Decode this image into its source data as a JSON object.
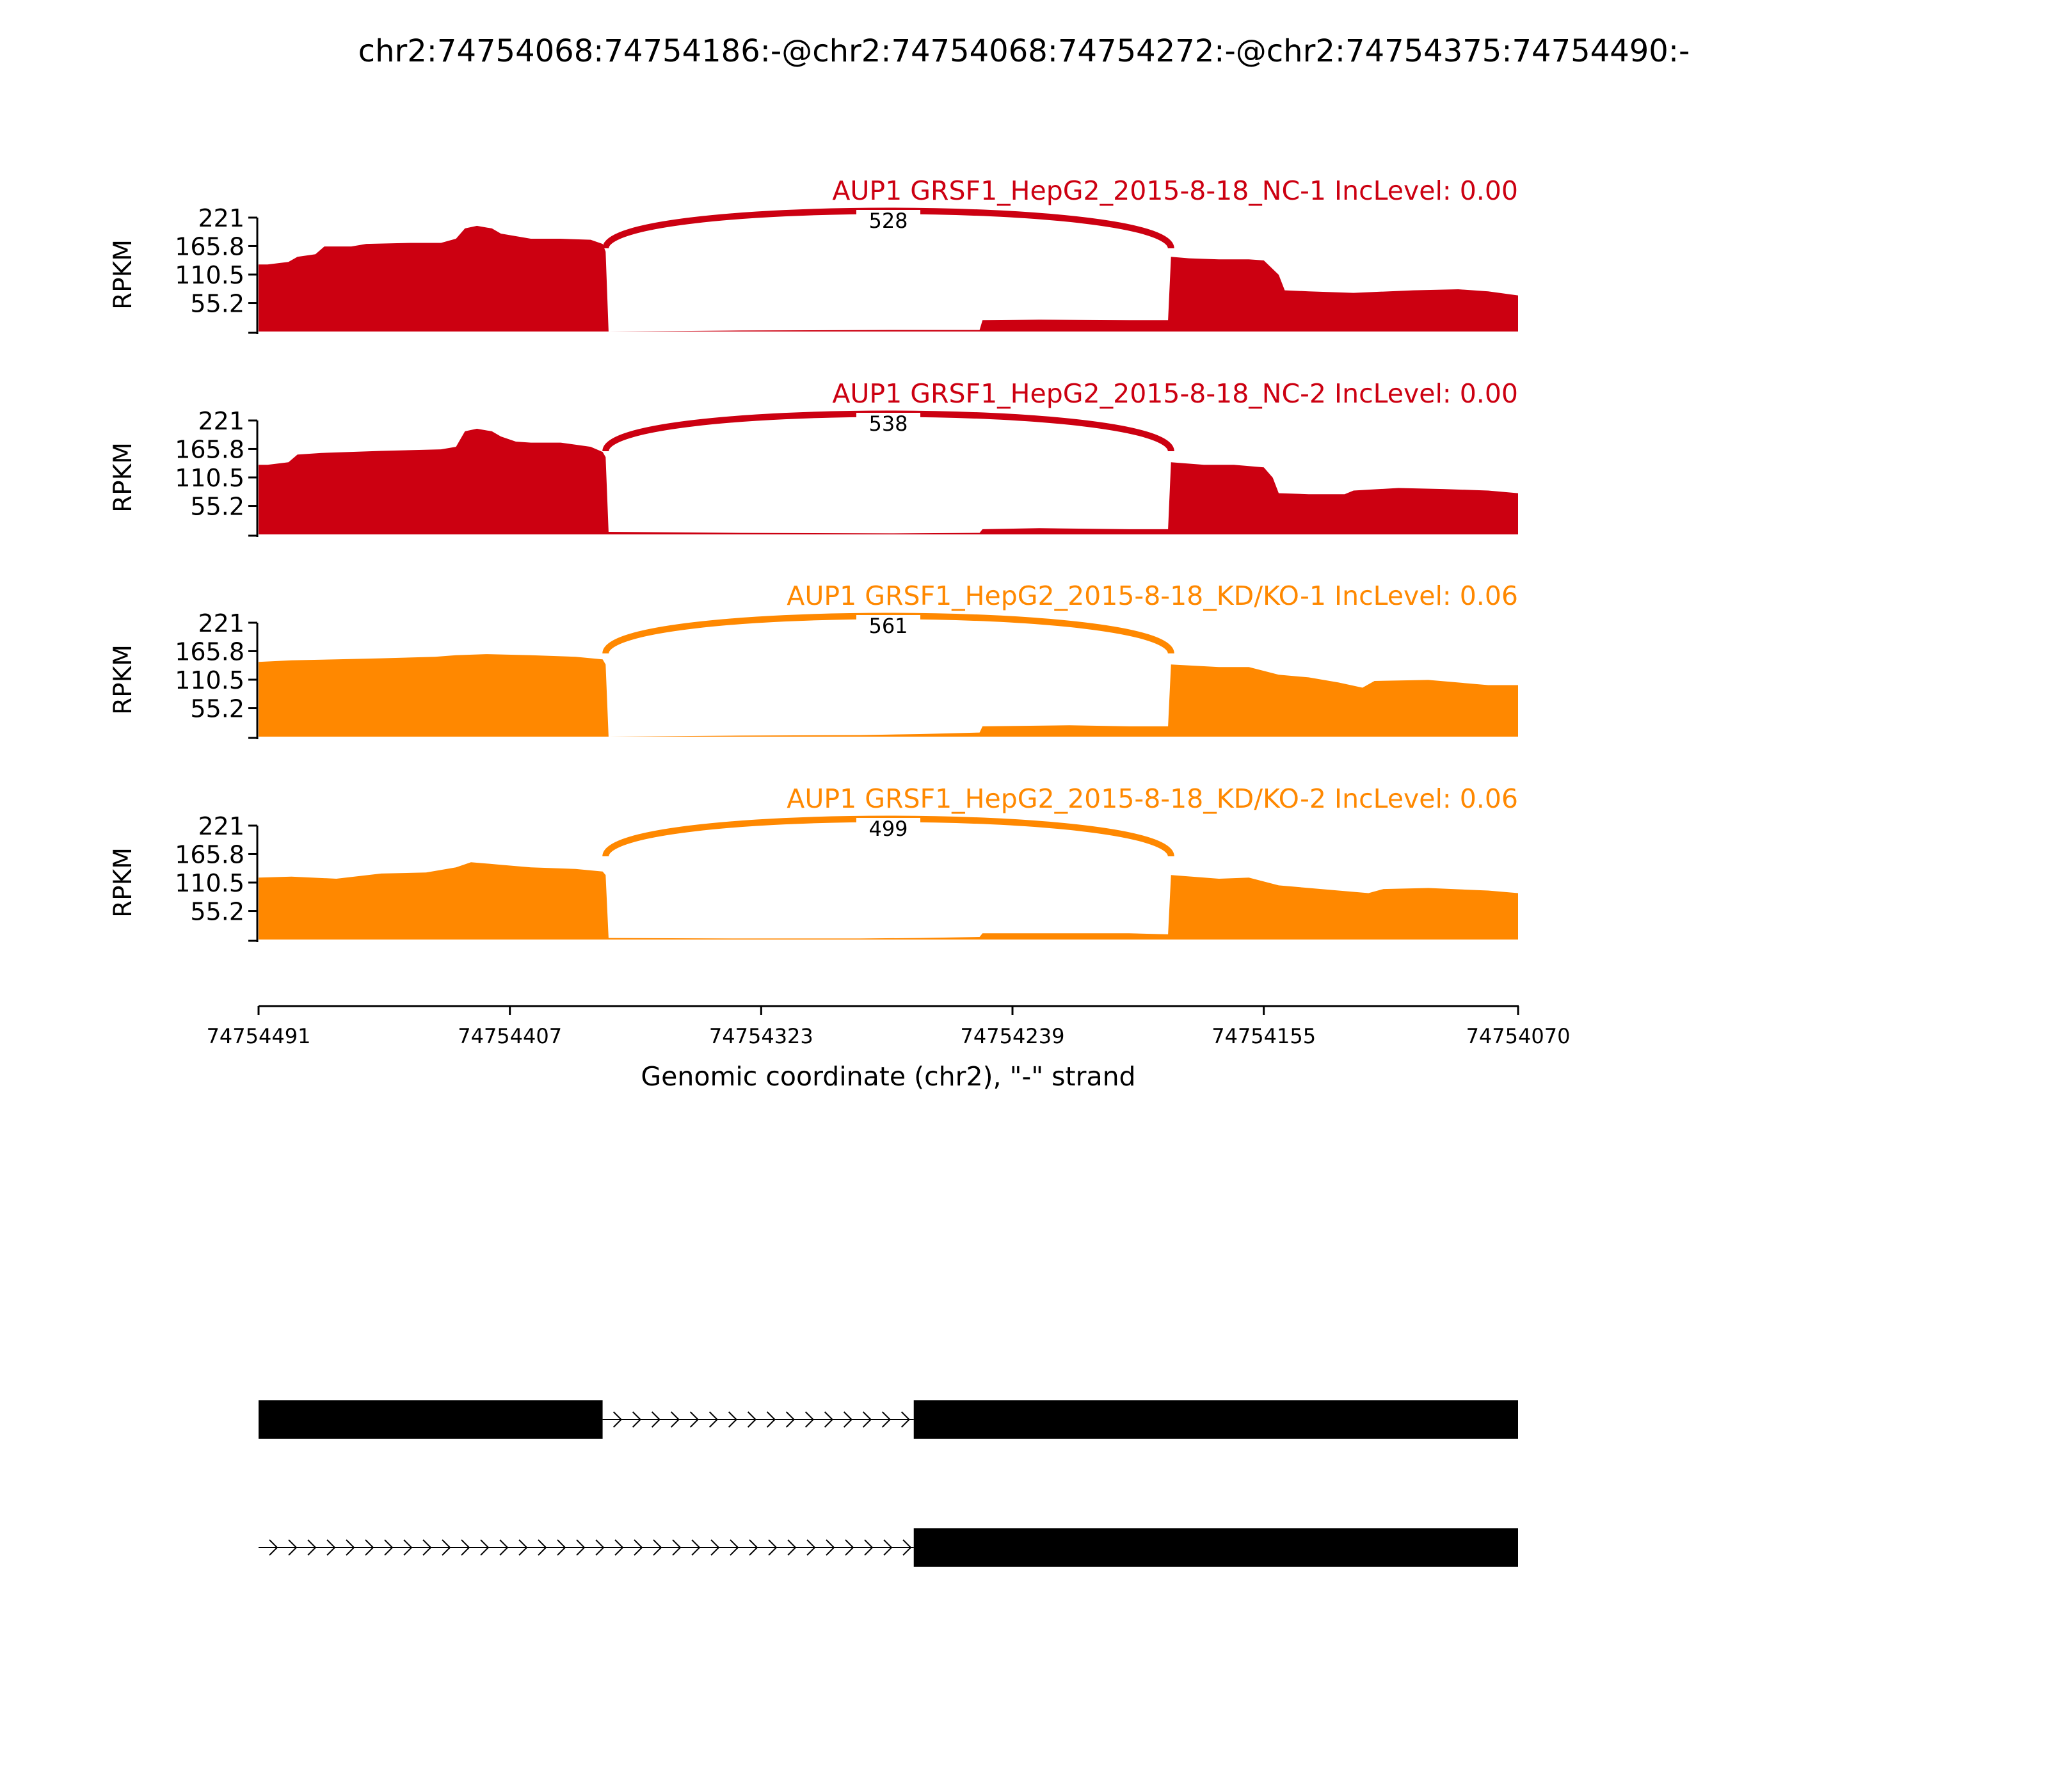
{
  "chart_data": {
    "type": "area",
    "title": "chr2:74754068:74754186:-@chr2:74754068:74754272:-@chr2:74754375:74754490:-",
    "xlabel": "Genomic coordinate (chr2), \"-\" strand",
    "ylabel": "RPKM",
    "xlim": [
      74754491,
      74754070
    ],
    "x_ticks": [
      "74754491",
      "74754407",
      "74754323",
      "74754239",
      "74754155",
      "74754070"
    ],
    "ylim": [
      0,
      221
    ],
    "y_ticks": [
      "221",
      "165.8",
      "110.5",
      "55.2"
    ],
    "grid": false,
    "colors": {
      "NC": "#cc0011",
      "KD": "#ff8800",
      "gene": "#000000"
    },
    "tracks": [
      {
        "name": "AUP1 GRSF1_HepG2_2015-8-18_NC-1 IncLevel: 0.00",
        "group": "NC",
        "junction": {
          "from": 74754375,
          "to": 74754186,
          "count": "528"
        },
        "coverage": [
          [
            74754491,
            130
          ],
          [
            74754488,
            130
          ],
          [
            74754481,
            135
          ],
          [
            74754478,
            145
          ],
          [
            74754472,
            150
          ],
          [
            74754469,
            165
          ],
          [
            74754460,
            165
          ],
          [
            74754455,
            170
          ],
          [
            74754440,
            172
          ],
          [
            74754430,
            172
          ],
          [
            74754425,
            180
          ],
          [
            74754422,
            200
          ],
          [
            74754418,
            205
          ],
          [
            74754413,
            200
          ],
          [
            74754410,
            190
          ],
          [
            74754405,
            185
          ],
          [
            74754400,
            180
          ],
          [
            74754390,
            180
          ],
          [
            74754380,
            178
          ],
          [
            74754376,
            170
          ],
          [
            74754375,
            155
          ],
          [
            74754374,
            0
          ],
          [
            74754330,
            2
          ],
          [
            74754280,
            3
          ],
          [
            74754250,
            3
          ],
          [
            74754249,
            22
          ],
          [
            74754230,
            23
          ],
          [
            74754200,
            22
          ],
          [
            74754187,
            22
          ],
          [
            74754186,
            145
          ],
          [
            74754180,
            142
          ],
          [
            74754170,
            140
          ],
          [
            74754160,
            140
          ],
          [
            74754155,
            138
          ],
          [
            74754150,
            110
          ],
          [
            74754148,
            80
          ],
          [
            74754140,
            78
          ],
          [
            74754125,
            75
          ],
          [
            74754105,
            80
          ],
          [
            74754090,
            82
          ],
          [
            74754080,
            78
          ],
          [
            74754070,
            70
          ]
        ]
      },
      {
        "name": "AUP1 GRSF1_HepG2_2015-8-18_NC-2 IncLevel: 0.00",
        "group": "NC",
        "junction": {
          "from": 74754375,
          "to": 74754186,
          "count": "538"
        },
        "coverage": [
          [
            74754491,
            135
          ],
          [
            74754488,
            135
          ],
          [
            74754481,
            140
          ],
          [
            74754478,
            155
          ],
          [
            74754470,
            158
          ],
          [
            74754460,
            160
          ],
          [
            74754450,
            162
          ],
          [
            74754430,
            165
          ],
          [
            74754425,
            170
          ],
          [
            74754422,
            200
          ],
          [
            74754418,
            205
          ],
          [
            74754413,
            200
          ],
          [
            74754410,
            190
          ],
          [
            74754405,
            180
          ],
          [
            74754400,
            178
          ],
          [
            74754390,
            178
          ],
          [
            74754380,
            170
          ],
          [
            74754376,
            160
          ],
          [
            74754375,
            150
          ],
          [
            74754374,
            5
          ],
          [
            74754330,
            3
          ],
          [
            74754280,
            2
          ],
          [
            74754250,
            3
          ],
          [
            74754249,
            10
          ],
          [
            74754230,
            12
          ],
          [
            74754200,
            10
          ],
          [
            74754187,
            10
          ],
          [
            74754186,
            140
          ],
          [
            74754175,
            135
          ],
          [
            74754165,
            135
          ],
          [
            74754155,
            130
          ],
          [
            74754152,
            110
          ],
          [
            74754150,
            80
          ],
          [
            74754140,
            78
          ],
          [
            74754128,
            78
          ],
          [
            74754125,
            85
          ],
          [
            74754110,
            90
          ],
          [
            74754095,
            88
          ],
          [
            74754080,
            85
          ],
          [
            74754070,
            80
          ]
        ]
      },
      {
        "name": "AUP1 GRSF1_HepG2_2015-8-18_KD/KO-1 IncLevel: 0.06",
        "group": "KD",
        "junction": {
          "from": 74754375,
          "to": 74754186,
          "count": "561"
        },
        "coverage": [
          [
            74754491,
            145
          ],
          [
            74754480,
            148
          ],
          [
            74754465,
            150
          ],
          [
            74754450,
            152
          ],
          [
            74754432,
            155
          ],
          [
            74754425,
            158
          ],
          [
            74754415,
            160
          ],
          [
            74754400,
            158
          ],
          [
            74754385,
            155
          ],
          [
            74754376,
            150
          ],
          [
            74754375,
            140
          ],
          [
            74754374,
            0
          ],
          [
            74754330,
            2
          ],
          [
            74754290,
            3
          ],
          [
            74754270,
            5
          ],
          [
            74754250,
            8
          ],
          [
            74754249,
            20
          ],
          [
            74754220,
            22
          ],
          [
            74754200,
            20
          ],
          [
            74754187,
            20
          ],
          [
            74754186,
            140
          ],
          [
            74754170,
            135
          ],
          [
            74754160,
            135
          ],
          [
            74754150,
            120
          ],
          [
            74754140,
            115
          ],
          [
            74754130,
            105
          ],
          [
            74754122,
            95
          ],
          [
            74754118,
            108
          ],
          [
            74754100,
            110
          ],
          [
            74754080,
            100
          ],
          [
            74754070,
            100
          ]
        ]
      },
      {
        "name": "AUP1 GRSF1_HepG2_2015-8-18_KD/KO-2 IncLevel: 0.06",
        "group": "KD",
        "junction": {
          "from": 74754375,
          "to": 74754186,
          "count": "499"
        },
        "coverage": [
          [
            74754491,
            120
          ],
          [
            74754480,
            122
          ],
          [
            74754465,
            118
          ],
          [
            74754450,
            128
          ],
          [
            74754435,
            130
          ],
          [
            74754425,
            140
          ],
          [
            74754420,
            150
          ],
          [
            74754410,
            145
          ],
          [
            74754400,
            140
          ],
          [
            74754385,
            137
          ],
          [
            74754376,
            132
          ],
          [
            74754375,
            125
          ],
          [
            74754374,
            3
          ],
          [
            74754330,
            2
          ],
          [
            74754290,
            2
          ],
          [
            74754270,
            3
          ],
          [
            74754250,
            5
          ],
          [
            74754249,
            12
          ],
          [
            74754220,
            12
          ],
          [
            74754200,
            12
          ],
          [
            74754187,
            10
          ],
          [
            74754186,
            125
          ],
          [
            74754170,
            118
          ],
          [
            74754160,
            120
          ],
          [
            74754150,
            105
          ],
          [
            74754130,
            95
          ],
          [
            74754120,
            90
          ],
          [
            74754115,
            98
          ],
          [
            74754100,
            100
          ],
          [
            74754080,
            95
          ],
          [
            74754070,
            90
          ]
        ]
      }
    ],
    "isoforms": [
      {
        "exons": [
          [
            74754491,
            74754376
          ],
          [
            74754272,
            74754070
          ]
        ]
      },
      {
        "exons": [
          [
            74754272,
            74754070
          ]
        ]
      }
    ]
  }
}
